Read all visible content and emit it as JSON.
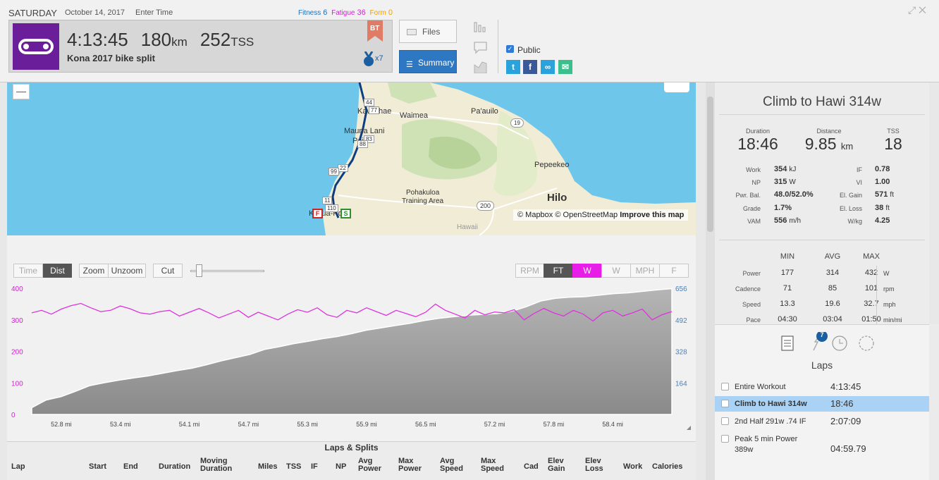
{
  "header": {
    "day": "SATURDAY",
    "date": "October 14, 2017",
    "enter_time": "Enter Time",
    "fitness_label": "Fitness",
    "fitness_value": "6",
    "fatigue_label": "Fatigue",
    "fatigue_value": "36",
    "form_label": "Form",
    "form_value": "0",
    "duration": "4:13:45",
    "distance": "180",
    "distance_unit": "km",
    "tss": "252",
    "tss_unit": "TSS",
    "title": "Kona 2017 bike split",
    "badge": "BT",
    "medal_count": "x7",
    "files_label": "Files",
    "summary_label": "Summary",
    "public_label": "Public",
    "accent": "#2e78c3",
    "sport_color": "#6a1e9a"
  },
  "map": {
    "labels": [
      "Kawaihae",
      "Waimea",
      "Pa'auilo",
      "Mauna Lani",
      "Point",
      "Pepeekeo",
      "Pohakuloa",
      "Training Area",
      "Hilo",
      "Kailua-Kona",
      "Hawaii"
    ],
    "road_shields": [
      "44",
      "77",
      "19",
      "83",
      "88",
      "22",
      "99",
      "11",
      "110",
      "200"
    ],
    "start_marker": "S",
    "finish_marker": "F",
    "attribution_mapbox": "© Mapbox",
    "attribution_osm": "© OpenStreetMap",
    "attribution_improve": "Improve this map"
  },
  "chart_toolbar": {
    "time": "Time",
    "dist": "Dist",
    "zoom": "Zoom",
    "unzoom": "Unzoom",
    "cut": "Cut",
    "rpm": "RPM",
    "ft": "FT",
    "w": "W",
    "w2": "W",
    "mph": "MPH",
    "f": "F"
  },
  "chart_data": {
    "type": "area",
    "series": [
      {
        "name": "Power",
        "color": "#dd33dd",
        "axis": "left",
        "values": [
          322,
          330,
          318,
          334,
          345,
          352,
          338,
          326,
          330,
          344,
          335,
          322,
          318,
          326,
          330,
          312,
          324,
          336,
          322,
          306,
          318,
          330,
          308,
          324,
          312,
          300,
          318,
          332,
          324,
          338,
          316,
          308,
          330,
          322,
          338,
          326,
          314,
          330,
          320,
          310,
          324,
          350,
          330,
          318,
          306,
          330,
          316,
          325,
          322,
          332,
          300,
          320,
          336,
          322,
          312,
          330,
          318,
          296,
          322,
          330,
          312,
          322,
          334,
          300,
          316,
          326
        ]
      },
      {
        "name": "Elevation",
        "color": "#999999",
        "axis": "right",
        "values": [
          35,
          75,
          92,
          120,
          150,
          165,
          178,
          190,
          200,
          214,
          228,
          240,
          258,
          278,
          295,
          312,
          338,
          352,
          368,
          380,
          394,
          405,
          420,
          438,
          450,
          462,
          474,
          488,
          500,
          508,
          516,
          520,
          524,
          536,
          560,
          590,
          604,
          610,
          612,
          620,
          628,
          632,
          640,
          648,
          654
        ]
      }
    ],
    "x_start": 52.5,
    "x_end": 59.0,
    "x_ticks": [
      "52.8 mi",
      "53.4 mi",
      "54.1 mi",
      "54.7 mi",
      "55.3 mi",
      "55.9 mi",
      "56.5 mi",
      "57.2 mi",
      "57.8 mi",
      "58.4 mi"
    ],
    "x_tick_values": [
      52.8,
      53.4,
      54.1,
      54.7,
      55.3,
      55.9,
      56.5,
      57.2,
      57.8,
      58.4
    ],
    "y_left_ticks": [
      "0",
      "100",
      "200",
      "300",
      "400"
    ],
    "y_left_ylim": [
      0,
      400
    ],
    "y_right_ticks": [
      "164",
      "328",
      "492",
      "656"
    ],
    "y_right_ylim": [
      0,
      656
    ],
    "grid": false
  },
  "laps_splits": {
    "title": "Laps & Splits",
    "columns": [
      "Lap",
      "Start",
      "End",
      "Duration",
      "Moving Duration",
      "Miles",
      "TSS",
      "IF",
      "NP",
      "Avg Power",
      "Max Power",
      "Avg Speed",
      "Max Speed",
      "Cad",
      "Elev Gain",
      "Elev Loss",
      "Work",
      "Calories"
    ]
  },
  "panel": {
    "title": "Climb to Hawi 314w",
    "duration_label": "Duration",
    "duration_value": "18:46",
    "distance_label": "Distance",
    "distance_value": "9.85",
    "distance_unit": "km",
    "tss_label": "TSS",
    "tss_value": "18",
    "left_kv": [
      {
        "label": "Work",
        "value": "354",
        "unit": "kJ"
      },
      {
        "label": "NP",
        "value": "315",
        "unit": "W"
      },
      {
        "label": "Pwr. Bal.",
        "value": "48.0/52.0%",
        "unit": ""
      },
      {
        "label": "Grade",
        "value": "1.7%",
        "unit": ""
      },
      {
        "label": "VAM",
        "value": "556",
        "unit": "m/h"
      }
    ],
    "right_kv": [
      {
        "label": "IF",
        "value": "0.78",
        "unit": ""
      },
      {
        "label": "VI",
        "value": "1.00",
        "unit": ""
      },
      {
        "label": "El. Gain",
        "value": "571",
        "unit": "ft"
      },
      {
        "label": "El. Loss",
        "value": "38",
        "unit": "ft"
      },
      {
        "label": "W/kg",
        "value": "4.25",
        "unit": ""
      }
    ],
    "minmax_headers": [
      "MIN",
      "AVG",
      "MAX"
    ],
    "minmax": [
      {
        "label": "Power",
        "min": "177",
        "avg": "314",
        "max": "432",
        "unit": "W"
      },
      {
        "label": "Cadence",
        "min": "71",
        "avg": "85",
        "max": "101",
        "unit": "rpm"
      },
      {
        "label": "Speed",
        "min": "13.3",
        "avg": "19.6",
        "max": "32.7",
        "unit": "mph"
      },
      {
        "label": "Pace",
        "min": "04:30",
        "avg": "03:04",
        "max": "01:50",
        "unit": "min/mi"
      }
    ],
    "peaks_badge": "7",
    "laps_label": "Laps",
    "laps": [
      {
        "name": "Entire Workout",
        "time": "4:13:45"
      },
      {
        "name": "Climb to Hawi 314w",
        "time": "18:46"
      },
      {
        "name": "2nd Half 291w .74 IF",
        "time": "2:07:09"
      },
      {
        "name": "Peak 5 min Power",
        "sub": "389w",
        "time": "04:59.79"
      }
    ]
  }
}
